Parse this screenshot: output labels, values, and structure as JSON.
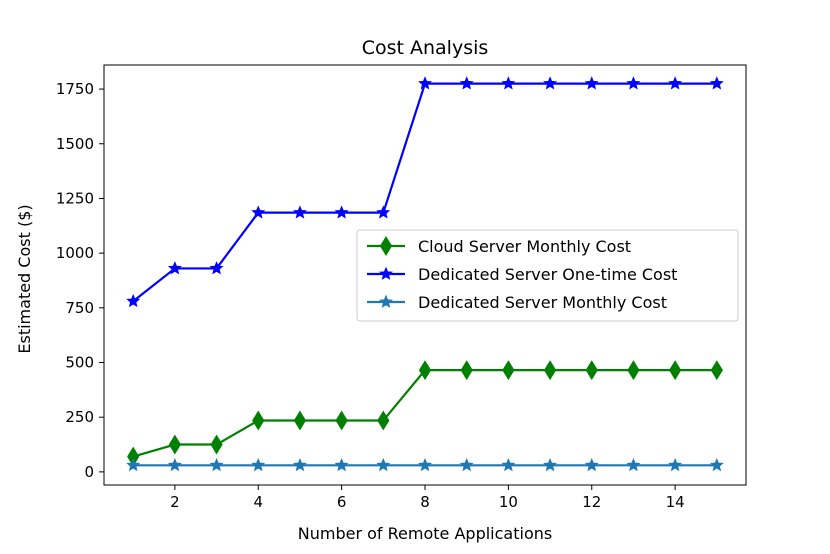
{
  "chart_data": {
    "type": "line",
    "title": "Cost Analysis",
    "xlabel": "Number of Remote Applications",
    "ylabel": "Estimated Cost ($)",
    "x": [
      1,
      2,
      3,
      4,
      5,
      6,
      7,
      8,
      9,
      10,
      11,
      12,
      13,
      14,
      15
    ],
    "xlim": [
      0.3,
      15.7
    ],
    "ylim": [
      -60,
      1860
    ],
    "xticks": [
      2,
      4,
      6,
      8,
      10,
      12,
      14
    ],
    "yticks": [
      0,
      250,
      500,
      750,
      1000,
      1250,
      1500,
      1750
    ],
    "grid": false,
    "legend": "center-right",
    "series": [
      {
        "name": "Cloud Server Monthly Cost",
        "color": "#008000",
        "marker": "diamond",
        "values": [
          70,
          125,
          125,
          235,
          235,
          235,
          235,
          465,
          465,
          465,
          465,
          465,
          465,
          465,
          465
        ]
      },
      {
        "name": "Dedicated Server One-time Cost",
        "color": "#0000ff",
        "marker": "star",
        "values": [
          780,
          930,
          930,
          1185,
          1185,
          1185,
          1185,
          1775,
          1775,
          1775,
          1775,
          1775,
          1775,
          1775,
          1775
        ]
      },
      {
        "name": "Dedicated Server Monthly Cost",
        "color": "#1f77b4",
        "marker": "star",
        "values": [
          30,
          30,
          30,
          30,
          30,
          30,
          30,
          30,
          30,
          30,
          30,
          30,
          30,
          30,
          30
        ]
      }
    ]
  }
}
